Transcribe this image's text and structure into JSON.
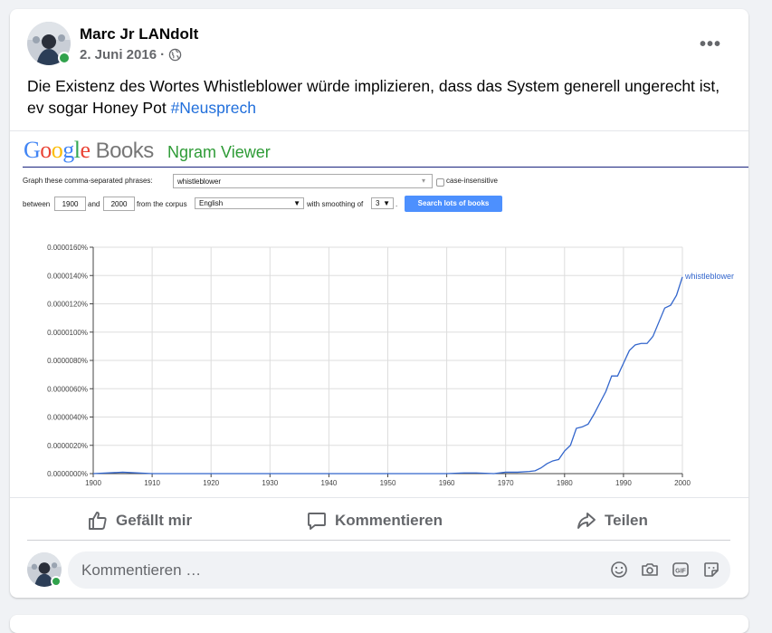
{
  "post": {
    "author": "Marc Jr LANdolt",
    "date": "2. Juni 2016",
    "separator": "·",
    "text": "Die Existenz des Wortes Whistleblower würde implizieren, dass das System generell ungerecht ist, ev sogar Honey Pot ",
    "hashtag": "#Neusprech",
    "more_label": "•••"
  },
  "ngram": {
    "logo_letters": [
      "G",
      "o",
      "o",
      "g",
      "l",
      "e"
    ],
    "logo_colors": [
      "#4285f4",
      "#ea4335",
      "#fbbc05",
      "#4285f4",
      "#34a853",
      "#ea4335"
    ],
    "logo_books": "Books",
    "title": "Ngram Viewer",
    "phrases_label": "Graph these comma-separated phrases:",
    "phrase_value": "whistleblower",
    "case_insensitive": "case-insensitive",
    "between": "between",
    "start_year": "1900",
    "and": "and",
    "end_year": "2000",
    "from_corpus": "from the corpus",
    "corpus": "English",
    "smoothing_label": "with smoothing of",
    "smoothing": "3",
    "period": ".",
    "search_button": "Search lots of books"
  },
  "chart_data": {
    "type": "line",
    "x_ticks": [
      "1900",
      "1910",
      "1920",
      "1930",
      "1940",
      "1950",
      "1960",
      "1970",
      "1980",
      "1990",
      "2000"
    ],
    "y_ticks": [
      "0.0000000%",
      "0.0000020%",
      "0.0000040%",
      "0.0000060%",
      "0.0000080%",
      "0.0000100%",
      "0.0000120%",
      "0.0000140%",
      "0.0000160%"
    ],
    "xlim": [
      1900,
      2000
    ],
    "ylim": [
      0,
      1.6e-05
    ],
    "grid": true,
    "series": [
      {
        "name": "whistleblower",
        "color": "#3366cc",
        "x": [
          1900,
          1905,
          1910,
          1920,
          1930,
          1940,
          1950,
          1960,
          1963,
          1965,
          1968,
          1970,
          1972,
          1974,
          1975,
          1976,
          1977,
          1978,
          1979,
          1980,
          1981,
          1982,
          1983,
          1984,
          1985,
          1986,
          1987,
          1988,
          1989,
          1990,
          1991,
          1992,
          1993,
          1994,
          1995,
          1996,
          1997,
          1998,
          1999,
          2000
        ],
        "y": [
          0,
          1e-07,
          0,
          0,
          0,
          0,
          0,
          0,
          5e-08,
          5e-08,
          0,
          1e-07,
          1e-07,
          1.5e-07,
          2e-07,
          4e-07,
          7e-07,
          9e-07,
          1e-06,
          1.6e-06,
          2e-06,
          3.2e-06,
          3.3e-06,
          3.5e-06,
          4.2e-06,
          5e-06,
          5.8e-06,
          6.9e-06,
          6.9e-06,
          7.8e-06,
          8.7e-06,
          9.1e-06,
          9.2e-06,
          9.2e-06,
          9.7e-06,
          1.07e-05,
          1.17e-05,
          1.19e-05,
          1.26e-05,
          1.39e-05
        ]
      }
    ]
  },
  "actions": {
    "like": "Gefällt mir",
    "comment": "Kommentieren",
    "share": "Teilen"
  },
  "comment_box": {
    "placeholder": "Kommentieren …"
  },
  "icons": [
    "smiley-icon",
    "camera-icon",
    "gif-icon",
    "sticker-icon"
  ]
}
